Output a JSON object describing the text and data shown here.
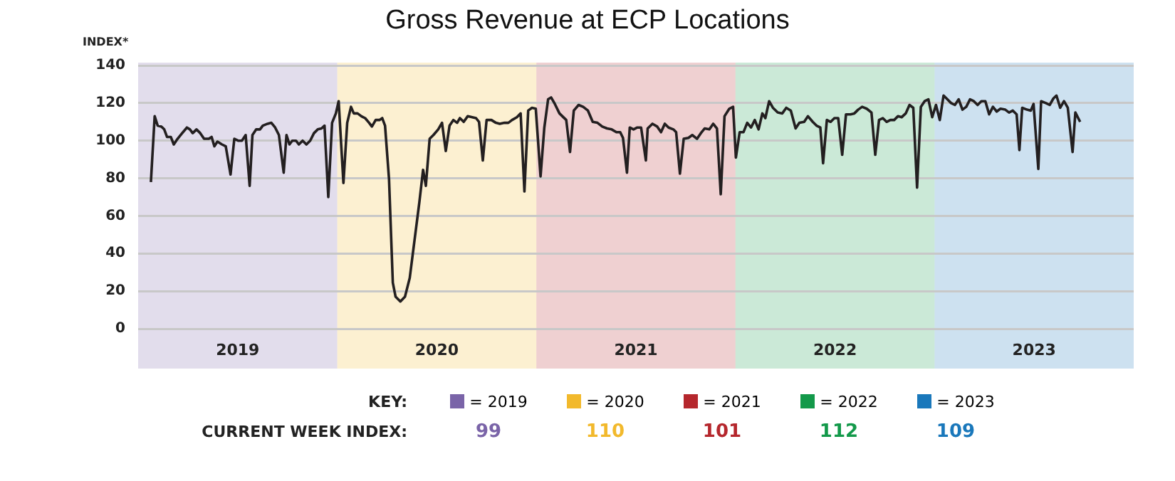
{
  "chart_data": {
    "type": "line",
    "title": "Gross Revenue at ECP Locations",
    "ylabel": "INDEX*",
    "xlim": [
      2019,
      2024
    ],
    "xticks": [
      {
        "value": 2019.5,
        "label": "2019"
      },
      {
        "value": 2020.5,
        "label": "2020"
      },
      {
        "value": 2021.5,
        "label": "2021"
      },
      {
        "value": 2022.5,
        "label": "2022"
      },
      {
        "value": 2023.5,
        "label": "2023"
      }
    ],
    "ylim": [
      0,
      140
    ],
    "yticks": [
      0,
      20,
      40,
      60,
      80,
      100,
      120,
      140
    ],
    "grid": "y",
    "legend": "bottom",
    "marker": "none",
    "line_style": "solid",
    "bands": [
      {
        "axis": "x",
        "from": 2019,
        "to": 2020,
        "color": "#7a64a8",
        "label": "= 2019"
      },
      {
        "axis": "x",
        "from": 2020,
        "to": 2021,
        "color": "#f2b92c",
        "label": "= 2020"
      },
      {
        "axis": "x",
        "from": 2021,
        "to": 2022,
        "color": "#b5272d",
        "label": "= 2021"
      },
      {
        "axis": "x",
        "from": 2022,
        "to": 2023,
        "color": "#13994a",
        "label": "= 2022"
      },
      {
        "axis": "x",
        "from": 2023,
        "to": 2024,
        "color": "#1a78bb",
        "label": "= 2023"
      }
    ],
    "annotations": [
      "KEY:",
      "CURRENT WEEK INDEX:",
      "99",
      "110",
      "101",
      "112",
      "109"
    ],
    "series": [
      {
        "color": "#231f20",
        "x": [
          2019.064,
          2019.083,
          2019.098,
          2019.117,
          2019.131,
          2019.145,
          2019.164,
          2019.179,
          2019.198,
          2019.221,
          2019.245,
          2019.26,
          2019.274,
          2019.293,
          2019.312,
          2019.331,
          2019.355,
          2019.369,
          2019.383,
          2019.398,
          2019.421,
          2019.44,
          2019.464,
          2019.483,
          2019.502,
          2019.521,
          2019.54,
          2019.56,
          2019.574,
          2019.593,
          2019.612,
          2019.626,
          2019.65,
          2019.669,
          2019.688,
          2019.707,
          2019.731,
          2019.745,
          2019.76,
          2019.774,
          2019.793,
          2019.807,
          2019.826,
          2019.845,
          2019.864,
          2019.883,
          2019.902,
          2019.921,
          2019.936,
          2019.955,
          2019.974,
          2019.993,
          2020.007,
          2020.031,
          2020.05,
          2020.069,
          2020.083,
          2020.102,
          2020.121,
          2020.14,
          2020.16,
          2020.174,
          2020.193,
          2020.212,
          2020.226,
          2020.24,
          2020.26,
          2020.279,
          2020.293,
          2020.317,
          2020.34,
          2020.364,
          2020.388,
          2020.412,
          2020.431,
          2020.445,
          2020.464,
          2020.483,
          2020.507,
          2020.526,
          2020.545,
          2020.564,
          2020.583,
          2020.602,
          2020.616,
          2020.635,
          2020.655,
          2020.678,
          2020.697,
          2020.712,
          2020.731,
          2020.75,
          2020.774,
          2020.797,
          2020.816,
          2020.84,
          2020.859,
          2020.878,
          2020.902,
          2020.921,
          2020.94,
          2020.959,
          2020.978,
          2020.997,
          2021.021,
          2021.04,
          2021.059,
          2021.074,
          2021.093,
          2021.116,
          2021.15,
          2021.169,
          2021.188,
          2021.212,
          2021.235,
          2021.259,
          2021.283,
          2021.307,
          2021.331,
          2021.355,
          2021.378,
          2021.402,
          2021.421,
          2021.435,
          2021.455,
          2021.469,
          2021.488,
          2021.507,
          2021.526,
          2021.55,
          2021.559,
          2021.583,
          2021.607,
          2021.626,
          2021.645,
          2021.664,
          2021.688,
          2021.702,
          2021.721,
          2021.74,
          2021.764,
          2021.783,
          2021.807,
          2021.826,
          2021.845,
          2021.869,
          2021.888,
          2021.907,
          2021.926,
          2021.945,
          2021.969,
          2021.988,
          2022.002,
          2022.021,
          2022.04,
          2022.059,
          2022.078,
          2022.097,
          2022.116,
          2022.135,
          2022.15,
          2022.169,
          2022.188,
          2022.212,
          2022.235,
          2022.255,
          2022.278,
          2022.302,
          2022.321,
          2022.345,
          2022.364,
          2022.388,
          2022.407,
          2022.426,
          2022.44,
          2022.459,
          2022.478,
          2022.497,
          2022.516,
          2022.536,
          2022.555,
          2022.578,
          2022.597,
          2022.616,
          2022.636,
          2022.659,
          2022.683,
          2022.702,
          2022.721,
          2022.74,
          2022.759,
          2022.778,
          2022.797,
          2022.816,
          2022.835,
          2022.855,
          2022.874,
          2022.893,
          2022.912,
          2022.931,
          2022.95,
          2022.969,
          2022.988,
          2023.007,
          2023.026,
          2023.045,
          2023.064,
          2023.083,
          2023.102,
          2023.121,
          2023.14,
          2023.159,
          2023.178,
          2023.197,
          2023.216,
          2023.235,
          2023.255,
          2023.274,
          2023.293,
          2023.312,
          2023.331,
          2023.355,
          2023.374,
          2023.393,
          2023.412,
          2023.426,
          2023.44,
          2023.464,
          2023.483,
          2023.497,
          2023.521,
          2023.535,
          2023.559,
          2023.578,
          2023.597,
          2023.612,
          2023.631,
          2023.65,
          2023.669,
          2023.693,
          2023.707,
          2023.731
        ],
        "values": [
          78,
          113,
          108,
          107.5,
          106,
          102,
          102,
          98,
          101,
          104,
          107,
          106,
          104,
          106,
          104,
          101,
          101,
          102,
          97,
          99.5,
          98,
          97,
          82,
          101,
          100,
          100,
          103,
          76,
          103,
          106,
          106,
          108,
          109,
          109.5,
          107,
          103,
          83,
          103,
          98,
          100,
          100,
          98,
          100,
          98,
          100,
          104,
          106,
          106.5,
          108,
          70,
          109.5,
          114.5,
          121,
          77.5,
          109.5,
          118,
          114.5,
          114.5,
          113,
          112,
          109.5,
          107.5,
          111,
          111,
          112,
          108,
          79.5,
          24.5,
          17,
          14.5,
          17,
          27,
          47,
          67,
          84.5,
          76,
          101,
          103,
          106,
          109.5,
          94.5,
          108,
          111,
          109.5,
          112,
          110,
          113,
          112.5,
          112,
          110,
          89.5,
          111,
          111,
          109.5,
          109,
          109.5,
          109.5,
          111,
          112.5,
          114.5,
          73,
          116,
          117.5,
          117,
          81,
          107,
          122,
          123,
          119.5,
          114.5,
          111,
          94,
          116,
          119,
          118,
          116,
          110,
          109.5,
          107.5,
          106.5,
          106,
          104.5,
          104.5,
          101.5,
          83,
          107,
          106,
          107,
          107,
          89.5,
          106.5,
          109,
          107.5,
          104.5,
          109,
          107,
          106,
          104.5,
          82.5,
          101,
          101.5,
          103,
          101,
          104,
          106.5,
          106,
          109,
          106.5,
          71.5,
          113,
          117,
          118,
          91,
          104.5,
          104.5,
          109.5,
          107,
          111,
          106,
          114.5,
          112,
          121,
          117.5,
          115,
          114.5,
          117.5,
          116,
          106.5,
          109.5,
          110,
          113,
          110,
          108,
          107,
          88,
          111,
          110,
          112,
          112,
          92.5,
          114,
          114,
          114.5,
          116.5,
          118,
          117,
          115,
          92.5,
          111,
          112,
          110,
          111,
          111,
          113,
          112.5,
          114.5,
          119,
          117.5,
          75,
          118,
          121,
          122,
          112.5,
          119,
          111,
          124,
          122,
          120,
          119,
          122,
          116.5,
          118,
          122,
          121,
          119,
          121,
          121,
          114,
          118,
          115.5,
          117,
          116.5,
          115,
          116,
          114,
          95,
          117.5,
          116.5,
          116,
          119.5,
          85,
          121,
          120,
          119,
          122.5,
          124,
          117.5,
          121,
          117.5,
          94,
          115,
          110
        ]
      }
    ]
  }
}
